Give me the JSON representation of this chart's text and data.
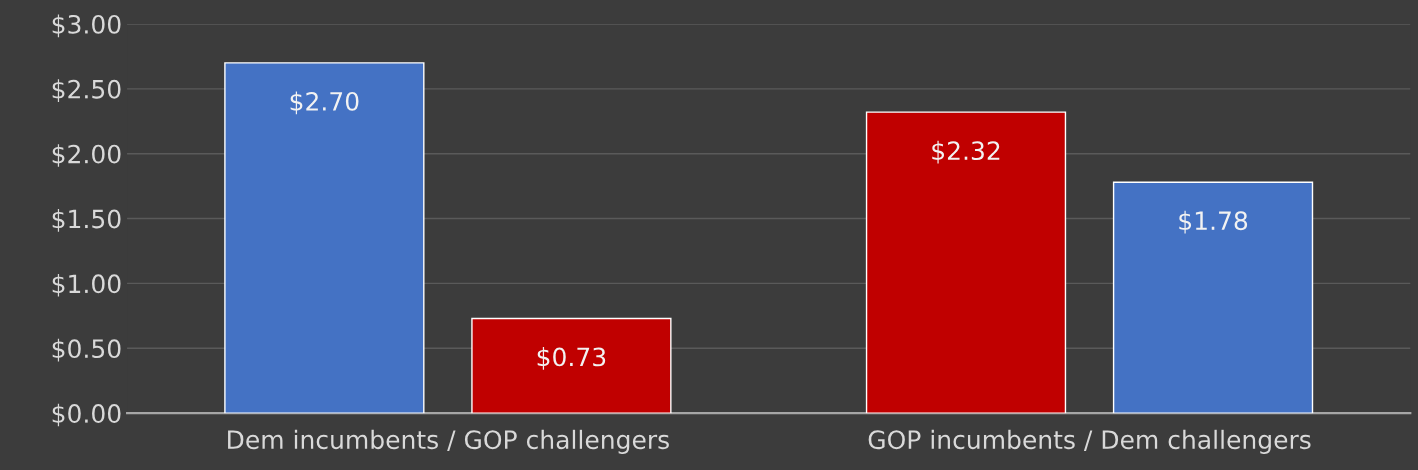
{
  "chart_data": {
    "type": "bar",
    "categories": [
      "Dem incumbents / GOP challengers",
      "GOP incumbents / Dem challengers"
    ],
    "series": [
      {
        "colors": [
          "#4472c4",
          "#c00000"
        ],
        "values": [
          2.7,
          2.32
        ],
        "value_labels": [
          "$2.70",
          "$2.32"
        ]
      },
      {
        "colors": [
          "#c00000",
          "#4472c4"
        ],
        "values": [
          0.73,
          1.78
        ],
        "value_labels": [
          "$0.73",
          "$1.78"
        ]
      }
    ],
    "ylim": [
      0,
      3
    ],
    "yticks": [
      {
        "value": 0,
        "label": "$0.00"
      },
      {
        "value": 0.5,
        "label": "$0.50"
      },
      {
        "value": 1,
        "label": "$1.00"
      },
      {
        "value": 1.5,
        "label": "$1.50"
      },
      {
        "value": 2,
        "label": "$2.00"
      },
      {
        "value": 2.5,
        "label": "$2.50"
      },
      {
        "value": 3,
        "label": "$3.00"
      }
    ],
    "grid": "y",
    "legend": false
  }
}
